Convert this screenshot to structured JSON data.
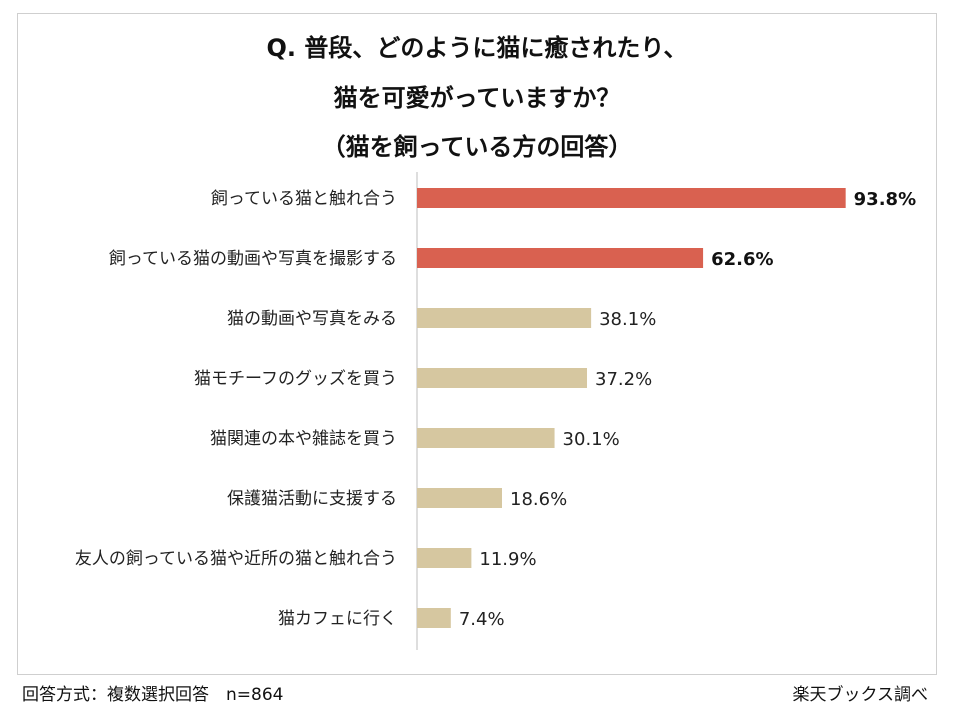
{
  "chart_data": {
    "type": "bar",
    "orientation": "horizontal",
    "title_lines": [
      "Q. 普段、どのように猫に癒されたり、",
      "猫を可愛がっていますか？",
      "（猫を飼っている方の回答）"
    ],
    "categories": [
      "飼っている猫と触れ合う",
      "飼っている猫の動画や写真を撮影する",
      "猫の動画や写真をみる",
      "猫モチーフのグッズを買う",
      "猫関連の本や雑誌を買う",
      "保護猫活動に支援する",
      "友人の飼っている猫や近所の猫と触れ合う",
      "猫カフェに行く"
    ],
    "values": [
      93.8,
      62.6,
      38.1,
      37.2,
      30.1,
      18.6,
      11.9,
      7.4
    ],
    "value_labels": [
      "93.8%",
      "62.6%",
      "38.1%",
      "37.2%",
      "30.1%",
      "18.6%",
      "11.9%",
      "7.4%"
    ],
    "highlight_count": 2,
    "xlim": [
      0,
      100
    ],
    "colors": {
      "highlight": "#d96150",
      "normal": "#d6c7a0",
      "axis": "#bdbdbd"
    }
  },
  "footer": {
    "left": "回答方式：複数選択回答　n=864",
    "right": "楽天ブックス調べ"
  }
}
